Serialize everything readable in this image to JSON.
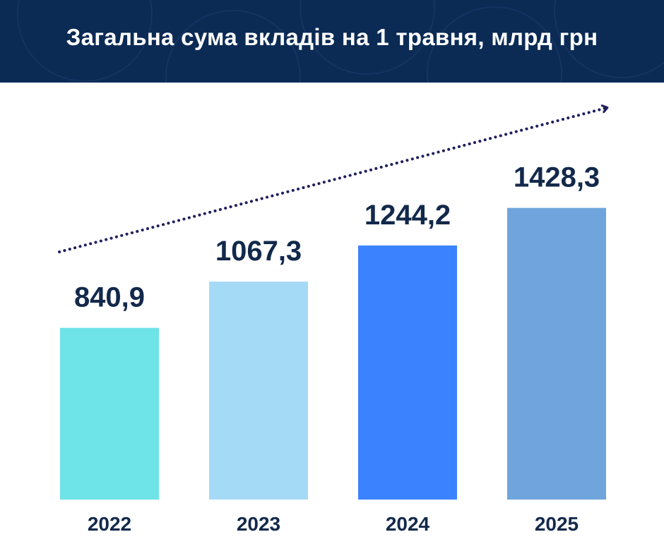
{
  "title": "Загальна сума вкладів на 1 травня, млрд грн",
  "colors": {
    "header_bg": "#0b2b55",
    "text": "#13294b",
    "trend_arrow": "#1f1f5e",
    "bars": [
      "#6ee3e8",
      "#a5daf6",
      "#3b82ff",
      "#6fa5dc"
    ]
  },
  "chart_data": {
    "type": "bar",
    "title": "Загальна сума вкладів на 1 травня, млрд грн",
    "categories": [
      "2022",
      "2023",
      "2024",
      "2025"
    ],
    "values": [
      840.9,
      1067.3,
      1244.2,
      1428.3
    ],
    "value_labels": [
      "840,9",
      "1067,3",
      "1244,2",
      "1428,3"
    ],
    "xlabel": "",
    "ylabel": "",
    "grid": false,
    "legend": "none",
    "trend_arrow": true
  }
}
